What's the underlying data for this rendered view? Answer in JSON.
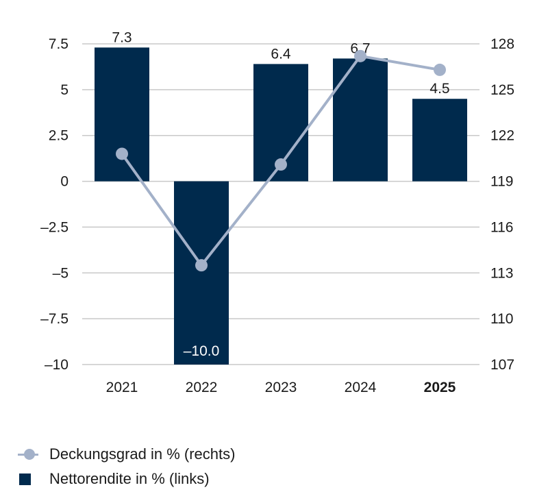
{
  "chart_data": {
    "type": "bar+line",
    "categories": [
      "2021",
      "2022",
      "2023",
      "2024",
      "2025"
    ],
    "highlight_category": "2025",
    "series": [
      {
        "name": "Nettorendite in % (links)",
        "type": "bar",
        "axis": "left",
        "values": [
          7.3,
          -10.0,
          6.4,
          6.7,
          4.5
        ],
        "labels": [
          "7.3",
          "–10.0",
          "6.4",
          "6.7",
          "4.5"
        ],
        "color": "#002a4d"
      },
      {
        "name": "Deckungsgrad in % (rechts)",
        "type": "line",
        "axis": "right",
        "values": [
          120.8,
          113.5,
          120.1,
          127.2,
          126.3
        ],
        "color": "#a3b1c9"
      }
    ],
    "y_left": {
      "ylim": [
        -10,
        7.5
      ],
      "ticks": [
        7.5,
        5,
        2.5,
        0,
        -2.5,
        -5,
        -7.5,
        -10
      ],
      "tick_labels": [
        "7.5",
        "5",
        "2.5",
        "0",
        "–2.5",
        "–5",
        "–7.5",
        "–10"
      ]
    },
    "y_right": {
      "ylim": [
        107,
        128
      ],
      "tick_labels": [
        "128",
        "125",
        "122",
        "119",
        "116",
        "113",
        "110",
        "107"
      ]
    },
    "grid": true,
    "legend_position": "bottom-left",
    "colors": {
      "text": "#1a1a1a",
      "grid": "#c8c8c8",
      "bar_label_inside": "#ffffff"
    }
  },
  "legend": {
    "items": [
      {
        "label": "Deckungsgrad in % (rechts)",
        "symbol": "line",
        "color": "#a3b1c9"
      },
      {
        "label": "Nettorendite in % (links)",
        "symbol": "box",
        "color": "#002a4d"
      }
    ]
  }
}
